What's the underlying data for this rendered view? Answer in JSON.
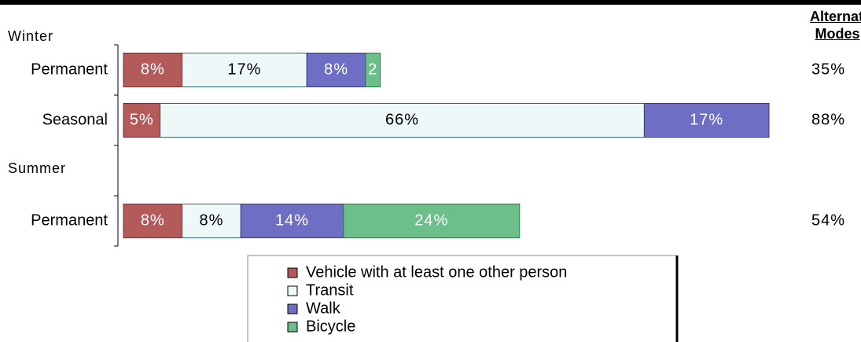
{
  "chart_data": {
    "type": "stacked-barh",
    "group_labels": [
      "Winter",
      "Summer"
    ],
    "categories": [
      "Permanent",
      "Seasonal",
      null,
      "Permanent"
    ],
    "series": [
      {
        "name": "Vehicle with at least one other person",
        "color": "#b45a5a",
        "values": [
          8,
          5,
          null,
          8
        ],
        "value_labels": [
          "8%",
          "5%",
          null,
          "8%"
        ]
      },
      {
        "name": "Transit",
        "color": "#eef8f8",
        "values": [
          17,
          66,
          null,
          8
        ],
        "value_labels": [
          "17%",
          "66%",
          null,
          "8%"
        ]
      },
      {
        "name": "Walk",
        "color": "#6e6ec4",
        "values": [
          8,
          17,
          null,
          14
        ],
        "value_labels": [
          "8%",
          "17%",
          null,
          "14%"
        ]
      },
      {
        "name": "Bicycle",
        "color": "#6cbf8a",
        "values": [
          2,
          null,
          null,
          24
        ],
        "value_labels": [
          "2",
          null,
          null,
          "24%"
        ]
      }
    ],
    "xlim": [
      0,
      88
    ],
    "alternate_modes": {
      "title": "Alternate Modes",
      "values": [
        35,
        88,
        null,
        54
      ],
      "value_labels": [
        "35%",
        "88%",
        null,
        "54%"
      ]
    }
  }
}
